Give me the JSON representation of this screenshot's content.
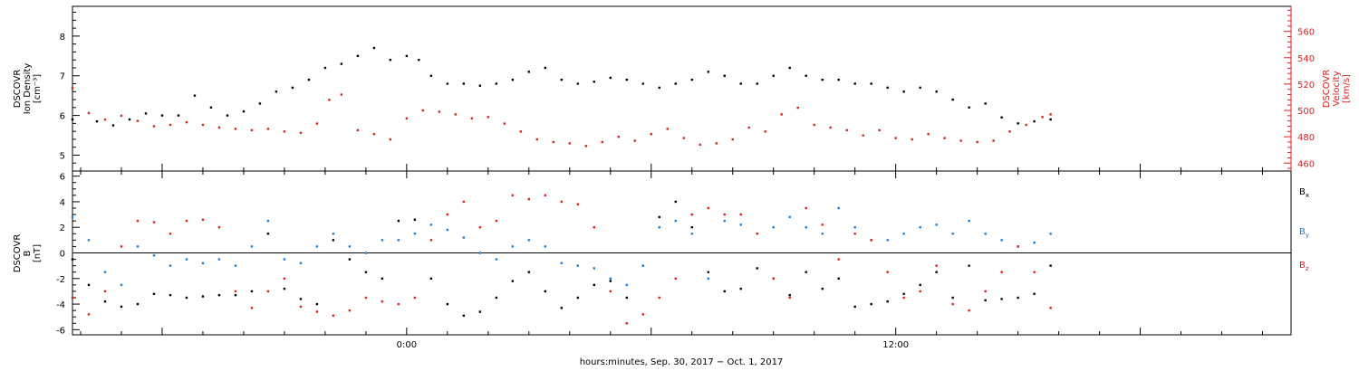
{
  "xlabel": "hours:minutes, Sep. 30, 2017 − Oct.  1, 2017",
  "x_ticks": [
    "0:00",
    "12:00"
  ],
  "colors": {
    "axis": "#000000",
    "black": "#000000",
    "red": "#e02020",
    "blue": "#1a7fd6"
  },
  "chart_data": [
    {
      "type": "scatter",
      "panel": "top",
      "x_unit": "hours since Sep. 30, 2017 0:00",
      "xlim": [
        -8.2,
        21.7
      ],
      "ylabel_left": [
        "DSCOVR",
        "Ion Density",
        "[cm⁻³]"
      ],
      "ylabel_right": [
        "DSCOVR",
        "Velocity",
        "[km/s]"
      ],
      "y_left_ticks": [
        "5",
        "6",
        "7",
        "8"
      ],
      "y_left_lim": [
        4.6,
        8.75
      ],
      "y_right_ticks": [
        "460",
        "480",
        "500",
        "520",
        "540",
        "560"
      ],
      "y_right_lim": [
        454,
        579
      ],
      "grid": false,
      "series": [
        {
          "color": "#000000",
          "axis": "left",
          "x": [
            -8.2,
            -7.6,
            -7.2,
            -6.8,
            -6.4,
            -6.0,
            -5.6,
            -5.2,
            -4.8,
            -4.4,
            -4.0,
            -3.6,
            -3.2,
            -2.8,
            -2.4,
            -2.0,
            -1.6,
            -1.2,
            -0.8,
            -0.4,
            0.0,
            0.3,
            0.6,
            1.0,
            1.4,
            1.8,
            2.2,
            2.6,
            3.0,
            3.4,
            3.8,
            4.2,
            4.6,
            5.0,
            5.4,
            5.8,
            6.2,
            6.6,
            7.0,
            7.4,
            7.8,
            8.2,
            8.6,
            9.0,
            9.4,
            9.8,
            10.2,
            10.6,
            11.0,
            11.4,
            11.8,
            12.2,
            12.6,
            13.0,
            13.4,
            13.8,
            14.2,
            14.6,
            15.0,
            15.4,
            15.8
          ],
          "y": [
            5.9,
            5.85,
            5.75,
            5.9,
            6.05,
            6.0,
            6.0,
            6.5,
            6.2,
            6.0,
            6.1,
            6.3,
            6.6,
            6.7,
            6.9,
            7.2,
            7.3,
            7.5,
            7.7,
            7.4,
            7.5,
            7.4,
            7.0,
            6.8,
            6.8,
            6.75,
            6.8,
            6.9,
            7.1,
            7.2,
            6.9,
            6.8,
            6.85,
            6.95,
            6.9,
            6.8,
            6.7,
            6.8,
            6.9,
            7.1,
            7.0,
            6.8,
            6.8,
            7.0,
            7.2,
            7.0,
            6.9,
            6.9,
            6.8,
            6.8,
            6.7,
            6.6,
            6.7,
            6.6,
            6.4,
            6.2,
            6.3,
            5.95,
            5.8,
            5.85,
            5.9
          ]
        },
        {
          "color": "#e02020",
          "axis": "right",
          "x": [
            -8.2,
            -7.8,
            -7.4,
            -7.0,
            -6.6,
            -6.2,
            -5.8,
            -5.4,
            -5.0,
            -4.6,
            -4.2,
            -3.8,
            -3.4,
            -3.0,
            -2.6,
            -2.2,
            -1.9,
            -1.6,
            -1.2,
            -0.8,
            -0.4,
            0.0,
            0.4,
            0.8,
            1.2,
            1.6,
            2.0,
            2.4,
            2.8,
            3.2,
            3.6,
            4.0,
            4.4,
            4.8,
            5.2,
            5.6,
            6.0,
            6.4,
            6.8,
            7.2,
            7.6,
            8.0,
            8.4,
            8.8,
            9.2,
            9.6,
            10.0,
            10.4,
            10.8,
            11.2,
            11.6,
            12.0,
            12.4,
            12.8,
            13.2,
            13.6,
            14.0,
            14.4,
            14.8,
            15.2,
            15.6,
            15.8
          ],
          "y": [
            517,
            498,
            493,
            496,
            492,
            488,
            489,
            491,
            489,
            487,
            486,
            485,
            486,
            484,
            483,
            490,
            508,
            512,
            485,
            482,
            478,
            494,
            500,
            499,
            497,
            494,
            495,
            490,
            484,
            478,
            476,
            475,
            473,
            476,
            480,
            477,
            482,
            486,
            479,
            474,
            475,
            478,
            487,
            484,
            497,
            502,
            489,
            487,
            485,
            481,
            485,
            479,
            478,
            482,
            479,
            477,
            476,
            477,
            484,
            489,
            495,
            497
          ]
        }
      ]
    },
    {
      "type": "scatter",
      "panel": "bottom",
      "x_unit": "hours since Sep. 30, 2017 0:00",
      "xlim": [
        -8.2,
        21.7
      ],
      "ylabel_left": [
        "DSCOVR",
        "B",
        "[nT]"
      ],
      "y_ticks": [
        "-6",
        "-4",
        "-2",
        "0",
        "2",
        "4",
        "6"
      ],
      "ylim": [
        -6.4,
        6.4
      ],
      "zero_line": true,
      "grid": false,
      "legend": {
        "placement": "right",
        "entries": [
          "B",
          "B",
          "B"
        ],
        "subscripts": [
          "x",
          "y",
          "z"
        ]
      },
      "series": [
        {
          "name": "Bx",
          "color": "#000000",
          "x": [
            -8.2,
            -7.8,
            -7.4,
            -7.0,
            -6.6,
            -6.2,
            -5.8,
            -5.4,
            -5.0,
            -4.6,
            -4.2,
            -3.8,
            -3.4,
            -3.0,
            -2.6,
            -2.2,
            -1.8,
            -1.4,
            -1.0,
            -0.6,
            -0.2,
            0.2,
            0.6,
            1.0,
            1.4,
            1.8,
            2.2,
            2.6,
            3.0,
            3.4,
            3.8,
            4.2,
            4.6,
            5.0,
            5.4,
            5.8,
            6.2,
            6.6,
            7.0,
            7.4,
            7.8,
            8.2,
            8.6,
            9.0,
            9.4,
            9.8,
            10.2,
            10.6,
            11.0,
            11.4,
            11.8,
            12.2,
            12.6,
            13.0,
            13.4,
            13.8,
            14.2,
            14.6,
            15.0,
            15.4,
            15.8
          ],
          "y": [
            -0.5,
            -2.5,
            -3.8,
            -4.2,
            -4.0,
            -3.2,
            -3.3,
            -3.5,
            -3.4,
            -3.3,
            -3.3,
            -3.0,
            1.5,
            -2.8,
            -3.6,
            -4.0,
            1.0,
            -0.5,
            -1.5,
            -2.0,
            2.5,
            2.6,
            -2.0,
            -4.0,
            -4.9,
            -4.6,
            -3.5,
            -2.2,
            -1.5,
            -3.0,
            -4.3,
            -3.5,
            -2.5,
            -2.2,
            -3.5,
            -1.0,
            2.8,
            4.0,
            2.0,
            -1.5,
            -3.0,
            -2.8,
            -1.2,
            -2.0,
            -3.3,
            -1.5,
            -2.8,
            -2.0,
            -4.2,
            -4.0,
            -3.8,
            -3.2,
            -2.5,
            -1.5,
            -3.5,
            -1.0,
            -3.7,
            -3.6,
            -3.5,
            -3.2,
            -1.0
          ]
        },
        {
          "name": "By",
          "color": "#1a7fd6",
          "x": [
            -8.2,
            -7.8,
            -7.4,
            -7.0,
            -6.6,
            -6.2,
            -5.8,
            -5.4,
            -5.0,
            -4.6,
            -4.2,
            -3.8,
            -3.4,
            -3.0,
            -2.6,
            -2.2,
            -1.8,
            -1.4,
            -1.0,
            -0.6,
            -0.2,
            0.2,
            0.6,
            1.0,
            1.4,
            1.8,
            2.2,
            2.6,
            3.0,
            3.4,
            3.8,
            4.2,
            4.6,
            5.0,
            5.4,
            5.8,
            6.2,
            6.6,
            7.0,
            7.4,
            7.8,
            8.2,
            8.6,
            9.0,
            9.4,
            9.8,
            10.2,
            10.6,
            11.0,
            11.4,
            11.8,
            12.2,
            12.6,
            13.0,
            13.4,
            13.8,
            14.2,
            14.6,
            15.0,
            15.4,
            15.8
          ],
          "y": [
            2.8,
            1.0,
            -1.5,
            -2.5,
            0.5,
            -0.2,
            -1.0,
            -0.5,
            -0.8,
            -0.5,
            -1.0,
            0.5,
            2.5,
            -0.5,
            -0.8,
            0.5,
            1.5,
            0.5,
            0.0,
            1.0,
            1.0,
            1.5,
            2.2,
            1.8,
            1.2,
            0.0,
            -0.5,
            0.5,
            1.0,
            0.5,
            -0.8,
            -1.0,
            -1.2,
            -2.0,
            -2.5,
            -1.0,
            2.0,
            2.5,
            1.5,
            -2.0,
            2.5,
            2.2,
            1.5,
            2.0,
            2.8,
            2.0,
            1.5,
            3.5,
            2.0,
            1.0,
            1.0,
            1.5,
            2.0,
            2.2,
            1.5,
            2.5,
            1.5,
            1.0,
            0.5,
            0.8,
            1.5
          ]
        },
        {
          "name": "Bz",
          "color": "#e02020",
          "x": [
            -8.2,
            -7.8,
            -7.4,
            -7.0,
            -6.6,
            -6.2,
            -5.8,
            -5.4,
            -5.0,
            -4.6,
            -4.2,
            -3.8,
            -3.4,
            -3.0,
            -2.6,
            -2.2,
            -1.8,
            -1.4,
            -1.0,
            -0.6,
            -0.2,
            0.2,
            0.6,
            1.0,
            1.4,
            1.8,
            2.2,
            2.6,
            3.0,
            3.4,
            3.8,
            4.2,
            4.6,
            5.0,
            5.4,
            5.8,
            6.2,
            6.6,
            7.0,
            7.4,
            7.8,
            8.2,
            8.6,
            9.0,
            9.4,
            9.8,
            10.2,
            10.6,
            11.0,
            11.4,
            11.8,
            12.2,
            12.6,
            13.0,
            13.4,
            13.8,
            14.2,
            14.6,
            15.0,
            15.4,
            15.8
          ],
          "y": [
            -3.5,
            -4.8,
            -3.0,
            0.5,
            2.5,
            2.4,
            1.5,
            2.5,
            2.6,
            2.0,
            -3.0,
            -4.3,
            -3.0,
            -2.0,
            -4.2,
            -4.6,
            -4.9,
            -4.5,
            -3.5,
            -3.8,
            -4.0,
            -3.5,
            1.0,
            3.0,
            4.0,
            2.0,
            2.5,
            4.5,
            4.2,
            4.5,
            4.0,
            3.8,
            2.0,
            -3.0,
            -5.5,
            -4.8,
            -3.5,
            -2.0,
            3.0,
            3.5,
            3.0,
            3.0,
            1.5,
            -2.0,
            -3.5,
            3.5,
            2.2,
            -0.5,
            1.5,
            1.0,
            -1.5,
            -3.5,
            -3.0,
            -1.0,
            -4.0,
            -4.5,
            -3.0,
            -1.5,
            0.5,
            -1.5,
            -4.3
          ]
        }
      ]
    }
  ]
}
